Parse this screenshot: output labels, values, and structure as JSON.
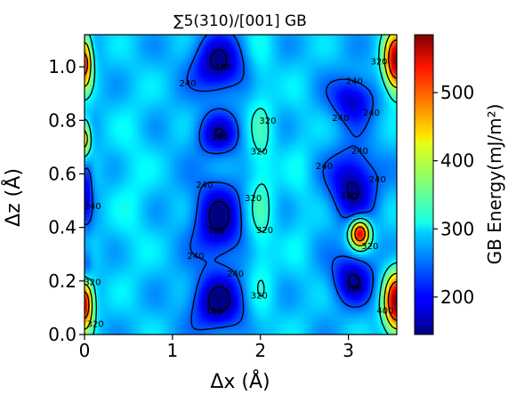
{
  "chart_data": {
    "type": "heatmap",
    "title": "∑5(310)/[001] GB",
    "xlabel": "Δx (Å)",
    "ylabel": "Δz (Å)",
    "xlim": [
      0,
      3.55
    ],
    "ylim": [
      0,
      1.12
    ],
    "x_ticks": [
      "0",
      "1",
      "2",
      "3"
    ],
    "y_ticks": [
      "0.0",
      "0.2",
      "0.4",
      "0.6",
      "0.8",
      "1.0"
    ],
    "colorbar": {
      "label": "GB Energy(mJ/m²)",
      "range": [
        145,
        585
      ],
      "ticks": [
        "200",
        "300",
        "400",
        "500"
      ],
      "colormap": "jet"
    },
    "contour_levels": [
      160,
      240,
      320,
      400,
      480
    ],
    "contour_labels": [
      "320",
      "320",
      "160",
      "240",
      "320",
      "240",
      "320",
      "160",
      "240",
      "160",
      "240",
      "240",
      "400",
      "160",
      "240",
      "160",
      "240",
      "160",
      "240",
      "320",
      "400",
      "320",
      "320",
      "240",
      "240",
      "480",
      "400",
      "160",
      "240",
      "320",
      "480",
      "320",
      "400"
    ],
    "background_energy": 280,
    "features": [
      {
        "name": "min",
        "x": 1.52,
        "z": 1.01,
        "energy": 150,
        "sx": 0.2,
        "sz": 0.075
      },
      {
        "name": "min",
        "x": 1.52,
        "z": 0.75,
        "energy": 175,
        "sx": 0.17,
        "sz": 0.055
      },
      {
        "name": "min",
        "x": 1.52,
        "z": 0.43,
        "energy": 150,
        "sx": 0.19,
        "sz": 0.1
      },
      {
        "name": "min",
        "x": 1.52,
        "z": 0.12,
        "energy": 150,
        "sx": 0.21,
        "sz": 0.075
      },
      {
        "name": "min",
        "x": 3.05,
        "z": 0.88,
        "energy": 170,
        "sx": 0.17,
        "sz": 0.06
      },
      {
        "name": "min",
        "x": 3.05,
        "z": 0.56,
        "energy": 150,
        "sx": 0.18,
        "sz": 0.09
      },
      {
        "name": "min",
        "x": 3.05,
        "z": 0.21,
        "energy": 160,
        "sx": 0.16,
        "sz": 0.065
      },
      {
        "name": "min",
        "x": 0.02,
        "z": 0.56,
        "energy": 185,
        "sx": 0.05,
        "sz": 0.1
      },
      {
        "name": "min",
        "x": 0.02,
        "z": 0.25,
        "energy": 200,
        "sx": 0.05,
        "sz": 0.05
      },
      {
        "name": "max",
        "x": 3.13,
        "z": 0.38,
        "energy": 560,
        "sx": 0.08,
        "sz": 0.038
      },
      {
        "name": "max",
        "x": 3.55,
        "z": 1.02,
        "energy": 580,
        "sx": 0.1,
        "sz": 0.08
      },
      {
        "name": "max",
        "x": 3.55,
        "z": 0.12,
        "energy": 580,
        "sx": 0.1,
        "sz": 0.08
      },
      {
        "name": "max",
        "x": 0.0,
        "z": 1.02,
        "energy": 520,
        "sx": 0.06,
        "sz": 0.07
      },
      {
        "name": "max",
        "x": 0.0,
        "z": 0.73,
        "energy": 470,
        "sx": 0.05,
        "sz": 0.05
      },
      {
        "name": "max",
        "x": 0.0,
        "z": 0.12,
        "energy": 560,
        "sx": 0.07,
        "sz": 0.07
      },
      {
        "name": "ridge",
        "x": 2.0,
        "z": 0.55,
        "energy": 330,
        "sx": 0.11,
        "sz": 0.4
      },
      {
        "name": "ridge",
        "x": 0.55,
        "z": 0.55,
        "energy": 305,
        "sx": 0.15,
        "sz": 0.28
      },
      {
        "name": "ridge",
        "x": 2.45,
        "z": 0.55,
        "energy": 300,
        "sx": 0.1,
        "sz": 0.3
      }
    ]
  }
}
